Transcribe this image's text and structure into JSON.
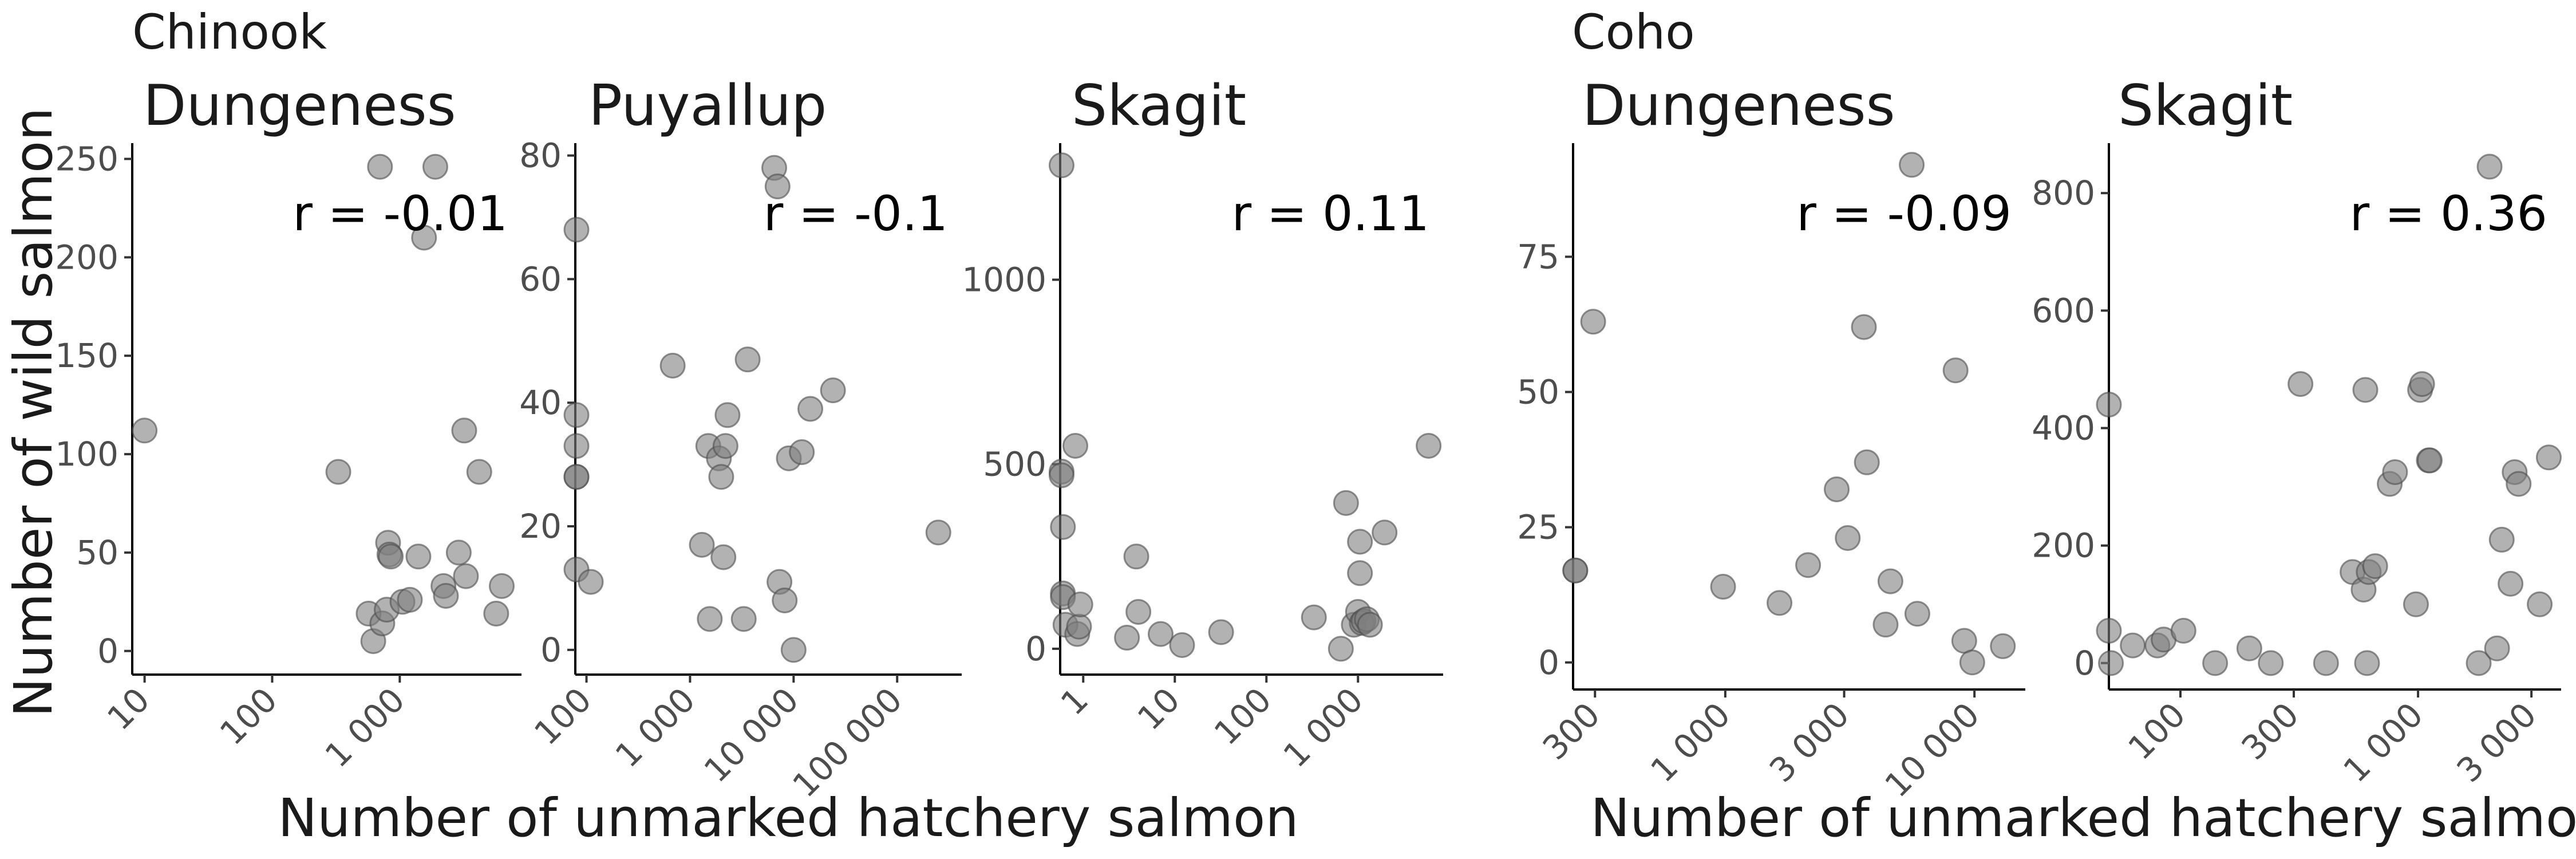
{
  "figure": {
    "species": [
      "Chinook",
      "Coho"
    ],
    "ylabel": "Number of wild salmon",
    "xlabel": "Number of unmarked hatchery salmon",
    "point_color": "#7f7f7f"
  },
  "chart_data": [
    {
      "type": "scatter",
      "species": "Chinook",
      "title": "Dungeness",
      "annotation": "r = -0.01",
      "x_scale": "log10",
      "xlim": [
        8,
        9000
      ],
      "ylim": [
        -12,
        258
      ],
      "x_ticks": [
        {
          "v": 10,
          "label": "10"
        },
        {
          "v": 100,
          "label": "100"
        },
        {
          "v": 1000,
          "label": "1 000"
        }
      ],
      "y_ticks": [
        {
          "v": 0,
          "label": "0"
        },
        {
          "v": 50,
          "label": "50"
        },
        {
          "v": 100,
          "label": "100"
        },
        {
          "v": 150,
          "label": "150"
        },
        {
          "v": 200,
          "label": "200"
        },
        {
          "v": 250,
          "label": "250"
        }
      ],
      "x": [
        10,
        330,
        570,
        620,
        700,
        730,
        790,
        810,
        830,
        850,
        1050,
        1200,
        1400,
        1550,
        1900,
        2200,
        2300,
        2900,
        3200,
        3300,
        4200,
        5700,
        6300
      ],
      "y": [
        112,
        91,
        19,
        5,
        246,
        14,
        21,
        55,
        49,
        48,
        25,
        26,
        48,
        210,
        246,
        33,
        28,
        50,
        112,
        38,
        91,
        19,
        33
      ]
    },
    {
      "type": "scatter",
      "species": "Chinook",
      "title": "Puyallup",
      "annotation": "r = -0.1",
      "x_scale": "log10",
      "xlim": [
        78,
        420000
      ],
      "ylim": [
        -4,
        82
      ],
      "x_ticks": [
        {
          "v": 100,
          "label": "100"
        },
        {
          "v": 1000,
          "label": "1 000"
        },
        {
          "v": 10000,
          "label": "10 000"
        },
        {
          "v": 100000,
          "label": "100 000"
        }
      ],
      "y_ticks": [
        {
          "v": 0,
          "label": "0"
        },
        {
          "v": 20,
          "label": "20"
        },
        {
          "v": 40,
          "label": "40"
        },
        {
          "v": 60,
          "label": "60"
        },
        {
          "v": 80,
          "label": "80"
        }
      ],
      "x": [
        80,
        80,
        80,
        80,
        80,
        80,
        110,
        680,
        1300,
        1500,
        1550,
        1900,
        2000,
        2100,
        2200,
        2300,
        3300,
        3600,
        6500,
        7000,
        7300,
        8200,
        9000,
        10000,
        12000,
        14500,
        24000,
        250000
      ],
      "y": [
        68,
        38,
        33,
        28,
        28,
        13,
        11,
        46,
        17,
        33,
        5,
        31,
        28,
        15,
        33,
        38,
        5,
        47,
        78,
        75,
        11,
        8,
        31,
        0,
        32,
        39,
        42,
        19
      ]
    },
    {
      "type": "scatter",
      "species": "Chinook",
      "title": "Skagit",
      "annotation": "r = 0.11",
      "x_scale": "log10",
      "xlim": [
        0.56,
        8500
      ],
      "ylim": [
        -70,
        1370
      ],
      "x_ticks": [
        {
          "v": 1,
          "label": "1"
        },
        {
          "v": 10,
          "label": "10"
        },
        {
          "v": 100,
          "label": "100"
        },
        {
          "v": 1000,
          "label": "1 000"
        }
      ],
      "y_ticks": [
        {
          "v": 0,
          "label": "0"
        },
        {
          "v": 500,
          "label": "500"
        },
        {
          "v": 1000,
          "label": "1000"
        }
      ],
      "x": [
        0.58,
        0.58,
        0.58,
        0.6,
        0.6,
        0.6,
        0.64,
        0.82,
        0.86,
        0.9,
        0.93,
        3.0,
        3.8,
        4.0,
        7.0,
        12,
        32,
        330,
        650,
        740,
        900,
        1000,
        1050,
        1050,
        1100,
        1150,
        1250,
        1350,
        1950,
        5900
      ],
      "y": [
        1310,
        480,
        470,
        330,
        150,
        140,
        65,
        550,
        40,
        60,
        120,
        30,
        250,
        100,
        40,
        10,
        45,
        85,
        0,
        395,
        65,
        100,
        205,
        290,
        70,
        75,
        80,
        65,
        315,
        550
      ]
    },
    {
      "type": "scatter",
      "species": "Coho",
      "title": "Dungeness",
      "annotation": "r = -0.09",
      "x_scale": "log10",
      "xlim": [
        245,
        16000
      ],
      "ylim": [
        -5,
        96
      ],
      "x_ticks": [
        {
          "v": 300,
          "label": "300"
        },
        {
          "v": 1000,
          "label": "1 000"
        },
        {
          "v": 3000,
          "label": "3 000"
        },
        {
          "v": 10000,
          "label": "10 000"
        }
      ],
      "y_ticks": [
        {
          "v": 0,
          "label": "0"
        },
        {
          "v": 25,
          "label": "25"
        },
        {
          "v": 50,
          "label": "50"
        },
        {
          "v": 75,
          "label": "75"
        }
      ],
      "x": [
        250,
        250,
        295,
        980,
        1650,
        2150,
        2800,
        3100,
        3600,
        3700,
        4400,
        4600,
        5600,
        5900,
        8400,
        9100,
        9800,
        13000
      ],
      "y": [
        17,
        17,
        63,
        14,
        11,
        18,
        32,
        23,
        62,
        37,
        7,
        15,
        92,
        9,
        54,
        4,
        0,
        3
      ]
    },
    {
      "type": "scatter",
      "species": "Coho",
      "title": "Skagit",
      "annotation": "r = 0.36",
      "x_scale": "log10",
      "xlim": [
        50,
        4000
      ],
      "ylim": [
        -45,
        885
      ],
      "x_ticks": [
        {
          "v": 100,
          "label": "100"
        },
        {
          "v": 300,
          "label": "300"
        },
        {
          "v": 1000,
          "label": "1 000"
        },
        {
          "v": 3000,
          "label": "3 000"
        }
      ],
      "y_ticks": [
        {
          "v": 0,
          "label": "0"
        },
        {
          "v": 200,
          "label": "200"
        },
        {
          "v": 400,
          "label": "400"
        },
        {
          "v": 600,
          "label": "600"
        },
        {
          "v": 800,
          "label": "800"
        }
      ],
      "x": [
        50,
        50,
        51,
        63,
        80,
        85,
        103,
        140,
        195,
        240,
        320,
        410,
        530,
        590,
        600,
        610,
        620,
        660,
        760,
        800,
        980,
        1020,
        1040,
        1110,
        1120,
        1800,
        2000,
        2150,
        2250,
        2450,
        2550,
        2650,
        3250,
        3550
      ],
      "y": [
        440,
        55,
        0,
        30,
        30,
        40,
        55,
        0,
        25,
        0,
        475,
        0,
        155,
        125,
        465,
        0,
        155,
        165,
        305,
        325,
        100,
        465,
        475,
        345,
        345,
        0,
        845,
        25,
        210,
        135,
        325,
        305,
        100,
        350
      ]
    }
  ]
}
